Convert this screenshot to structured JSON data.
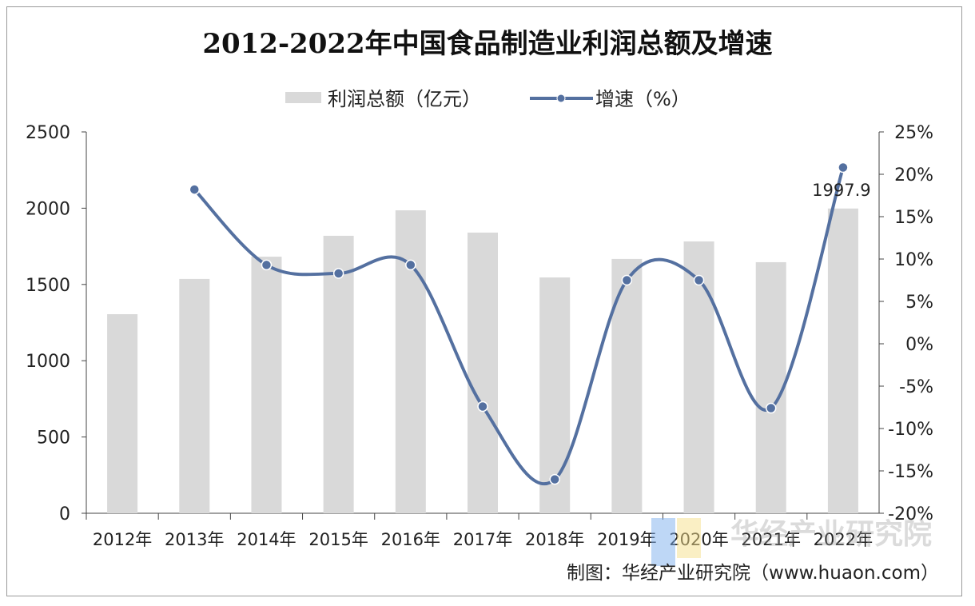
{
  "chart_data": {
    "type": "bar+line",
    "title": "2012-2022年中国食品制造业利润总额及增速",
    "categories": [
      "2012年",
      "2013年",
      "2014年",
      "2015年",
      "2016年",
      "2017年",
      "2018年",
      "2019年",
      "2020年",
      "2021年",
      "2022年"
    ],
    "series": [
      {
        "name": "利润总额（亿元）",
        "type": "bar",
        "axis": "left",
        "color": "#d9d9d9",
        "values": [
          1305,
          1536,
          1682,
          1819,
          1986,
          1840,
          1546,
          1667,
          1782,
          1646,
          1997.9
        ]
      },
      {
        "name": "增速（%）",
        "type": "line",
        "axis": "right",
        "color": "#5470a0",
        "smooth": true,
        "values": [
          null,
          18.2,
          9.3,
          8.3,
          9.3,
          -7.4,
          -16.0,
          7.5,
          7.5,
          -7.6,
          20.8
        ]
      }
    ],
    "data_labels": [
      {
        "category": "2022年",
        "text": "1997.9"
      }
    ],
    "y_left": {
      "min": 0,
      "max": 2500,
      "ticks": [
        "0",
        "500",
        "1000",
        "1500",
        "2000",
        "2500"
      ]
    },
    "y_right": {
      "min": -20,
      "max": 25,
      "ticks": [
        "-20%",
        "-15%",
        "-10%",
        "-5%",
        "0%",
        "5%",
        "10%",
        "15%",
        "20%",
        "25%"
      ]
    },
    "grid": false,
    "legend": "top-center",
    "source": "制图：华经产业研究院（www.huaon.com）",
    "watermark": {
      "text": "华经产业研究院",
      "url": "www.huaon.com"
    }
  }
}
